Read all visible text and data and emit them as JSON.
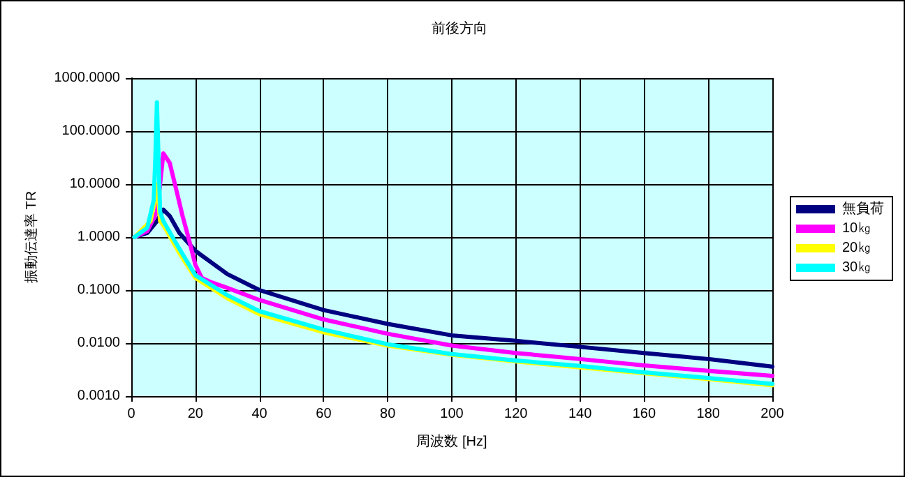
{
  "chart_data": {
    "type": "line",
    "title": "前後方向",
    "xlabel": "周波数 [Hz]",
    "ylabel": "振動伝達率 TR",
    "log": "y",
    "grid": true,
    "legend": "right",
    "marker": "none",
    "line_style": "solid",
    "xlim": [
      0,
      200
    ],
    "xticks": [
      0,
      20,
      40,
      60,
      80,
      100,
      120,
      140,
      160,
      180,
      200
    ],
    "ylim": [
      0.001,
      1000
    ],
    "yticks": [
      {
        "value": 0.001,
        "label": "0.0010"
      },
      {
        "value": 0.01,
        "label": "0.0100"
      },
      {
        "value": 0.1,
        "label": "0.1000"
      },
      {
        "value": 1,
        "label": "1.0000"
      },
      {
        "value": 10,
        "label": "10.0000"
      },
      {
        "value": 100,
        "label": "100.0000"
      },
      {
        "value": 1000,
        "label": "1000.0000"
      }
    ],
    "series": [
      {
        "name": "無負荷",
        "color": "#000080",
        "x": [
          1,
          5,
          8,
          10,
          12,
          15,
          20,
          30,
          40,
          60,
          80,
          100,
          120,
          140,
          160,
          180,
          200
        ],
        "values": [
          1,
          1.2,
          2,
          3.3,
          2.5,
          1.2,
          0.55,
          0.2,
          0.1,
          0.042,
          0.023,
          0.014,
          0.011,
          0.0085,
          0.0065,
          0.005,
          0.0036
        ]
      },
      {
        "name": "10㎏",
        "color": "#ff00ff",
        "x": [
          1,
          5,
          8,
          9,
          10,
          12,
          14,
          16,
          18,
          20,
          22,
          25,
          30,
          40,
          60,
          80,
          100,
          120,
          140,
          160,
          180,
          200
        ],
        "values": [
          1,
          1.3,
          3,
          10,
          38,
          25,
          8,
          2.5,
          0.9,
          0.3,
          0.17,
          0.14,
          0.11,
          0.065,
          0.028,
          0.015,
          0.009,
          0.0065,
          0.005,
          0.0038,
          0.003,
          0.0024
        ]
      },
      {
        "name": "20㎏",
        "color": "#ffff00",
        "x": [
          1,
          6,
          7,
          8,
          9,
          10,
          15,
          20,
          30,
          40,
          60,
          80,
          100,
          120,
          140,
          160,
          180,
          200
        ],
        "values": [
          1,
          2,
          4,
          10,
          2,
          1.7,
          0.5,
          0.17,
          0.07,
          0.035,
          0.016,
          0.009,
          0.006,
          0.0045,
          0.0035,
          0.0027,
          0.0021,
          0.0016
        ]
      },
      {
        "name": "30㎏",
        "color": "#00ffff",
        "x": [
          1,
          5,
          7,
          7.5,
          8,
          8.5,
          9,
          10,
          15,
          20,
          30,
          40,
          60,
          80,
          100,
          120,
          140,
          160,
          180,
          200
        ],
        "values": [
          1,
          1.5,
          5,
          30,
          350,
          30,
          3,
          2,
          0.6,
          0.19,
          0.08,
          0.04,
          0.018,
          0.0095,
          0.0062,
          0.0047,
          0.0037,
          0.0028,
          0.0022,
          0.0017
        ]
      }
    ]
  }
}
